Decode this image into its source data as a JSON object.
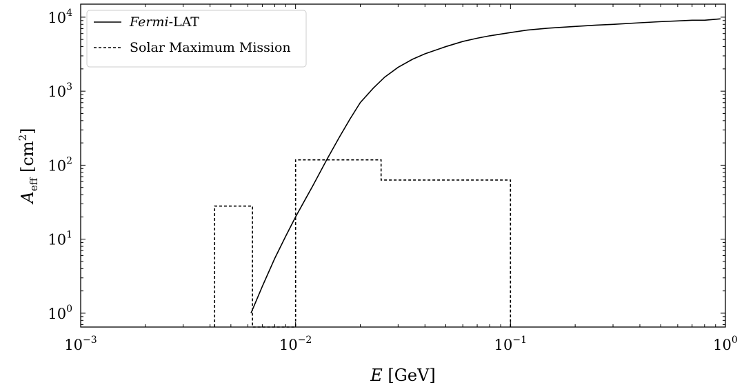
{
  "chart_data": {
    "type": "line",
    "xscale": "log",
    "yscale": "log",
    "xlim": [
      0.001,
      1
    ],
    "ylim": [
      0.65,
      15000
    ],
    "xlabel": {
      "var": "E",
      "unit": "[GeV]"
    },
    "ylabel": {
      "var": "A",
      "sub": "eff",
      "unit_open": "[cm",
      "unit_sup": "2",
      "unit_close": "]"
    },
    "xticks": [
      {
        "value": 0.001,
        "base": "10",
        "exp": "−3"
      },
      {
        "value": 0.01,
        "base": "10",
        "exp": "−2"
      },
      {
        "value": 0.1,
        "base": "10",
        "exp": "−1"
      },
      {
        "value": 1,
        "base": "10",
        "exp": "0"
      }
    ],
    "yticks": [
      {
        "value": 1,
        "base": "10",
        "exp": "0"
      },
      {
        "value": 10,
        "base": "10",
        "exp": "1"
      },
      {
        "value": 100,
        "base": "10",
        "exp": "2"
      },
      {
        "value": 1000,
        "base": "10",
        "exp": "3"
      },
      {
        "value": 10000,
        "base": "10",
        "exp": "4"
      }
    ],
    "legend": {
      "placement": "top-left",
      "entries": [
        {
          "italic": "Fermi",
          "rest": "-LAT",
          "style": "solid"
        },
        {
          "italic": "",
          "rest": "Solar Maximum Mission",
          "style": "dashed"
        }
      ]
    },
    "series": [
      {
        "id": "fermi",
        "style": "solid",
        "color": "#000000",
        "x": [
          0.0062,
          0.007,
          0.008,
          0.009,
          0.01,
          0.011,
          0.012,
          0.014,
          0.016,
          0.018,
          0.02,
          0.023,
          0.026,
          0.03,
          0.035,
          0.04,
          0.05,
          0.06,
          0.07,
          0.08,
          0.1,
          0.12,
          0.15,
          0.2,
          0.25,
          0.3,
          0.4,
          0.5,
          0.6,
          0.7,
          0.8,
          0.95
        ],
        "y": [
          1.0,
          2.3,
          5.5,
          11,
          20,
          33,
          52,
          120,
          240,
          430,
          700,
          1100,
          1550,
          2100,
          2700,
          3200,
          4000,
          4700,
          5200,
          5600,
          6200,
          6700,
          7100,
          7500,
          7800,
          8000,
          8400,
          8700,
          8900,
          9100,
          9100,
          9500
        ]
      },
      {
        "id": "smm",
        "style": "dashed",
        "color": "#000000",
        "x": [
          0.0042,
          0.0042,
          0.0063,
          0.0063,
          0.01,
          0.01,
          0.025,
          0.025,
          0.1,
          0.1
        ],
        "y": [
          0.65,
          28,
          28,
          0.65,
          0.65,
          118,
          118,
          63,
          63,
          0.65
        ]
      }
    ]
  }
}
